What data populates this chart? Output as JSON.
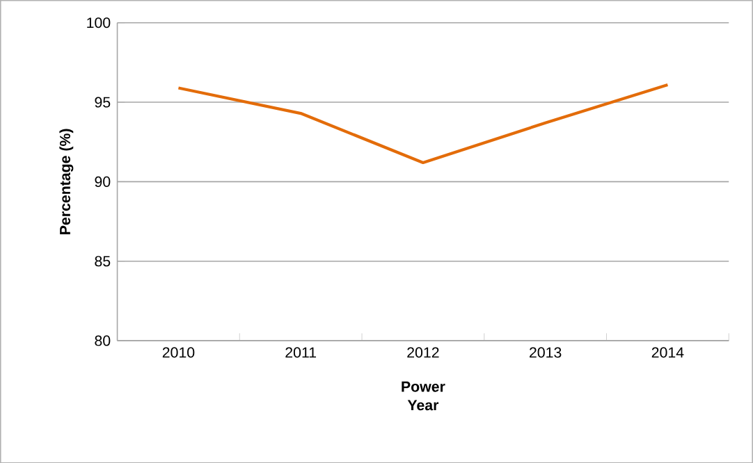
{
  "chart_data": {
    "type": "line",
    "xlabel": "Power Year",
    "ylabel": "Percentage (%)",
    "categories": [
      "2010",
      "2011",
      "2012",
      "2013",
      "2014"
    ],
    "series": [
      {
        "color": "#e36c0a",
        "values": [
          95.9,
          94.3,
          91.2,
          93.7,
          96.1
        ]
      }
    ],
    "ylim": [
      80,
      100
    ],
    "yticks": [
      80,
      85,
      90,
      95,
      100
    ],
    "grid": "y",
    "marker": "none",
    "line_style": "solid"
  }
}
